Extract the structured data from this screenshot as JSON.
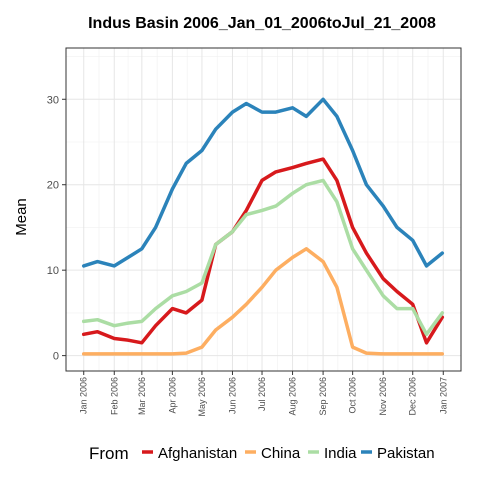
{
  "chart_data": {
    "type": "line",
    "title": "Indus Basin 2006_Jan_01_2006toJul_21_2008",
    "xlabel": "",
    "ylabel": "Mean",
    "legend_title": "From",
    "legend_position": "bottom",
    "grid": true,
    "ylim": [
      -1.8,
      36
    ],
    "y_ticks": [
      0,
      10,
      20,
      30
    ],
    "x_ticks": [
      "Jan 2006",
      "Feb 2006",
      "Mar 2006",
      "Apr 2006",
      "May 2006",
      "Jun 2006",
      "Jul 2006",
      "Aug 2006",
      "Sep 2006",
      "Oct 2006",
      "Nov 2006",
      "Dec 2006",
      "Jan 2007"
    ],
    "x": [
      "2006-01-01",
      "2006-01-15",
      "2006-02-01",
      "2006-02-15",
      "2006-03-01",
      "2006-03-15",
      "2006-04-01",
      "2006-04-15",
      "2006-05-01",
      "2006-05-15",
      "2006-06-01",
      "2006-06-15",
      "2006-07-01",
      "2006-07-15",
      "2006-08-01",
      "2006-08-15",
      "2006-09-01",
      "2006-09-15",
      "2006-10-01",
      "2006-10-15",
      "2006-11-01",
      "2006-11-15",
      "2006-12-01",
      "2006-12-15",
      "2006-12-31"
    ],
    "series": [
      {
        "name": "Afghanistan",
        "color": "#d7191c",
        "values": [
          2.5,
          2.8,
          2.0,
          1.8,
          1.5,
          3.5,
          5.5,
          5.0,
          6.5,
          13.0,
          14.5,
          17.0,
          20.5,
          21.5,
          22.0,
          22.5,
          23.0,
          20.5,
          15.0,
          12.0,
          9.0,
          7.5,
          6.0,
          1.5,
          4.5
        ]
      },
      {
        "name": "China",
        "color": "#fdae61",
        "values": [
          0.2,
          0.2,
          0.2,
          0.2,
          0.2,
          0.2,
          0.2,
          0.3,
          1.0,
          3.0,
          4.5,
          6.0,
          8.0,
          10.0,
          11.5,
          12.5,
          11.0,
          8.0,
          1.0,
          0.3,
          0.2,
          0.2,
          0.2,
          0.2,
          0.2
        ]
      },
      {
        "name": "India",
        "color": "#abdda4",
        "values": [
          4.0,
          4.2,
          3.5,
          3.8,
          4.0,
          5.5,
          7.0,
          7.5,
          8.5,
          13.0,
          14.5,
          16.5,
          17.0,
          17.5,
          19.0,
          20.0,
          20.5,
          18.0,
          12.5,
          10.0,
          7.0,
          5.5,
          5.5,
          2.5,
          5.0
        ]
      },
      {
        "name": "Pakistan",
        "color": "#2b83ba",
        "values": [
          10.5,
          11.0,
          10.5,
          11.5,
          12.5,
          15.0,
          19.5,
          22.5,
          24.0,
          26.5,
          28.5,
          29.5,
          28.5,
          28.5,
          29.0,
          28.0,
          30.0,
          28.0,
          24.0,
          20.0,
          17.5,
          15.0,
          13.5,
          10.5,
          12.0
        ]
      }
    ]
  }
}
